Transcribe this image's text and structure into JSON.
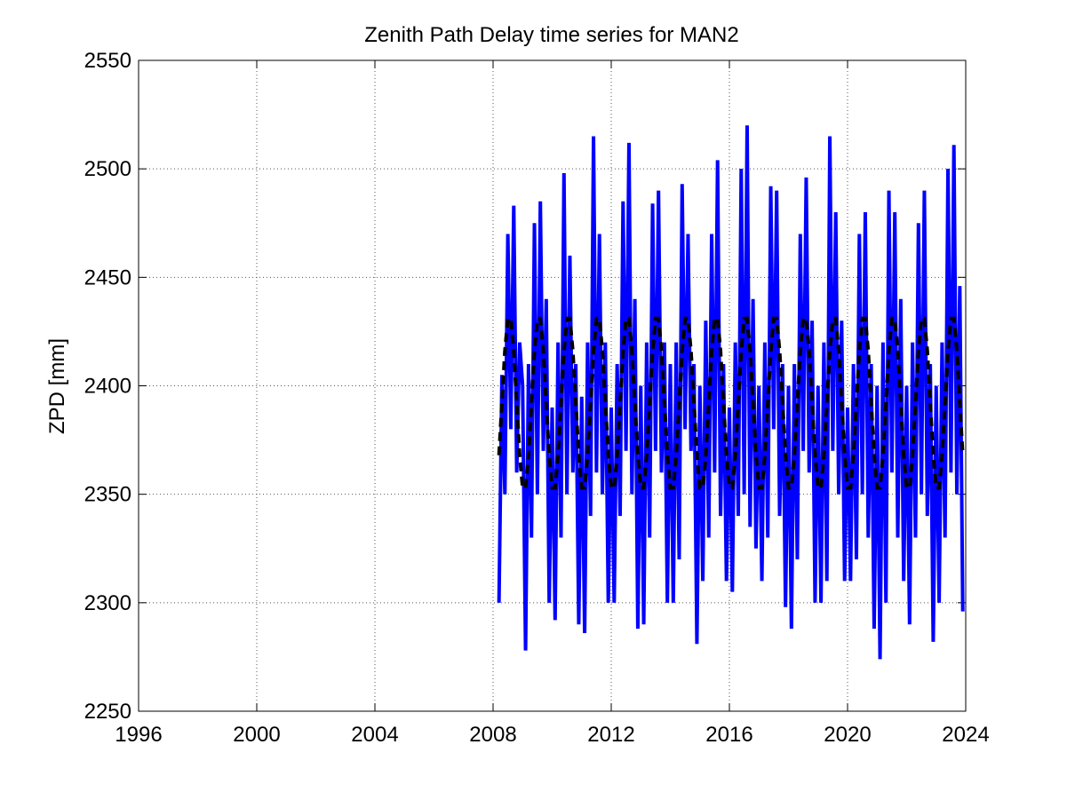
{
  "chart_data": {
    "type": "line",
    "title": "Zenith Path Delay time series for MAN2",
    "ylabel": "ZPD [mm]",
    "xlim": [
      1996,
      2024
    ],
    "xticks": [
      1996,
      2000,
      2004,
      2008,
      2012,
      2016,
      2020,
      2024
    ],
    "ylim": [
      2250,
      2550
    ],
    "yticks": [
      2250,
      2300,
      2350,
      2400,
      2450,
      2500,
      2550
    ],
    "grid": true,
    "x": [
      2008.2,
      2008.3,
      2008.4,
      2008.5,
      2008.6,
      2008.7,
      2008.8,
      2008.9,
      2009.0,
      2009.1,
      2009.2,
      2009.3,
      2009.4,
      2009.5,
      2009.6,
      2009.7,
      2009.8,
      2009.9,
      2010.0,
      2010.1,
      2010.2,
      2010.3,
      2010.4,
      2010.5,
      2010.6,
      2010.7,
      2010.8,
      2010.9,
      2011.0,
      2011.1,
      2011.2,
      2011.3,
      2011.4,
      2011.5,
      2011.6,
      2011.7,
      2011.8,
      2011.9,
      2012.0,
      2012.1,
      2012.2,
      2012.3,
      2012.4,
      2012.5,
      2012.6,
      2012.7,
      2012.8,
      2012.9,
      2013.0,
      2013.1,
      2013.2,
      2013.3,
      2013.4,
      2013.5,
      2013.6,
      2013.7,
      2013.8,
      2013.9,
      2014.0,
      2014.1,
      2014.2,
      2014.3,
      2014.4,
      2014.5,
      2014.6,
      2014.7,
      2014.8,
      2014.9,
      2015.0,
      2015.1,
      2015.2,
      2015.3,
      2015.4,
      2015.5,
      2015.6,
      2015.7,
      2015.8,
      2015.9,
      2016.0,
      2016.1,
      2016.2,
      2016.3,
      2016.4,
      2016.5,
      2016.6,
      2016.7,
      2016.8,
      2016.9,
      2017.0,
      2017.1,
      2017.2,
      2017.3,
      2017.4,
      2017.5,
      2017.6,
      2017.7,
      2017.8,
      2017.9,
      2018.0,
      2018.1,
      2018.2,
      2018.3,
      2018.4,
      2018.5,
      2018.6,
      2018.7,
      2018.8,
      2018.9,
      2019.0,
      2019.1,
      2019.2,
      2019.3,
      2019.4,
      2019.5,
      2019.6,
      2019.7,
      2019.8,
      2019.9,
      2020.0,
      2020.1,
      2020.2,
      2020.3,
      2020.4,
      2020.5,
      2020.6,
      2020.7,
      2020.8,
      2020.9,
      2021.0,
      2021.1,
      2021.2,
      2021.3,
      2021.4,
      2021.5,
      2021.6,
      2021.7,
      2021.8,
      2021.9,
      2022.0,
      2022.1,
      2022.2,
      2022.3,
      2022.4,
      2022.5,
      2022.6,
      2022.7,
      2022.8,
      2022.9,
      2023.0,
      2023.1,
      2023.2,
      2023.3,
      2023.4,
      2023.5,
      2023.6,
      2023.7,
      2023.8,
      2023.9
    ],
    "series": [
      {
        "color": "#0000ff",
        "line_style": "solid",
        "values": [
          2300,
          2405,
          2350,
          2470,
          2380,
          2483,
          2360,
          2420,
          2400,
          2278,
          2410,
          2330,
          2475,
          2350,
          2485,
          2370,
          2440,
          2300,
          2390,
          2292,
          2420,
          2330,
          2498,
          2350,
          2460,
          2360,
          2410,
          2290,
          2395,
          2286,
          2420,
          2340,
          2515,
          2360,
          2470,
          2350,
          2420,
          2300,
          2390,
          2300,
          2410,
          2340,
          2485,
          2370,
          2512,
          2350,
          2440,
          2288,
          2400,
          2290,
          2420,
          2330,
          2484,
          2370,
          2490,
          2360,
          2420,
          2300,
          2410,
          2300,
          2420,
          2320,
          2493,
          2380,
          2470,
          2370,
          2410,
          2281,
          2400,
          2310,
          2430,
          2330,
          2470,
          2360,
          2504,
          2340,
          2410,
          2310,
          2390,
          2305,
          2420,
          2340,
          2500,
          2350,
          2520,
          2335,
          2440,
          2325,
          2400,
          2310,
          2420,
          2330,
          2492,
          2380,
          2490,
          2340,
          2410,
          2298,
          2400,
          2288,
          2410,
          2320,
          2470,
          2370,
          2496,
          2360,
          2430,
          2300,
          2400,
          2300,
          2420,
          2310,
          2515,
          2370,
          2480,
          2350,
          2430,
          2310,
          2390,
          2310,
          2410,
          2320,
          2470,
          2350,
          2480,
          2330,
          2410,
          2288,
          2400,
          2274,
          2420,
          2300,
          2490,
          2360,
          2480,
          2330,
          2440,
          2310,
          2400,
          2290,
          2420,
          2330,
          2475,
          2350,
          2490,
          2340,
          2410,
          2282,
          2400,
          2300,
          2420,
          2330,
          2500,
          2360,
          2511,
          2350,
          2446,
          2296
        ]
      },
      {
        "color": "#000000",
        "line_style": "dashed",
        "values": [
          2368,
          2392,
          2416,
          2431,
          2431,
          2416,
          2392,
          2368,
          2353,
          2353,
          2368,
          2392,
          2416,
          2431,
          2431,
          2416,
          2392,
          2368,
          2353,
          2353,
          2368,
          2392,
          2416,
          2431,
          2431,
          2416,
          2392,
          2368,
          2353,
          2353,
          2368,
          2392,
          2416,
          2431,
          2431,
          2416,
          2392,
          2368,
          2353,
          2353,
          2368,
          2392,
          2416,
          2431,
          2431,
          2416,
          2392,
          2368,
          2353,
          2353,
          2368,
          2392,
          2416,
          2431,
          2431,
          2416,
          2392,
          2368,
          2353,
          2353,
          2368,
          2392,
          2416,
          2431,
          2431,
          2416,
          2392,
          2368,
          2353,
          2353,
          2368,
          2392,
          2416,
          2431,
          2431,
          2416,
          2392,
          2368,
          2353,
          2353,
          2368,
          2392,
          2416,
          2431,
          2431,
          2416,
          2392,
          2368,
          2353,
          2353,
          2368,
          2392,
          2416,
          2431,
          2431,
          2416,
          2392,
          2368,
          2353,
          2353,
          2368,
          2392,
          2416,
          2431,
          2431,
          2416,
          2392,
          2368,
          2353,
          2353,
          2368,
          2392,
          2416,
          2431,
          2431,
          2416,
          2392,
          2368,
          2353,
          2353,
          2368,
          2392,
          2416,
          2431,
          2431,
          2416,
          2392,
          2368,
          2353,
          2353,
          2368,
          2392,
          2416,
          2431,
          2431,
          2416,
          2392,
          2368,
          2353,
          2353,
          2368,
          2392,
          2416,
          2431,
          2431,
          2416,
          2392,
          2368,
          2353,
          2353,
          2368,
          2392,
          2416,
          2431,
          2431,
          2416,
          2392,
          2368
        ]
      }
    ]
  }
}
